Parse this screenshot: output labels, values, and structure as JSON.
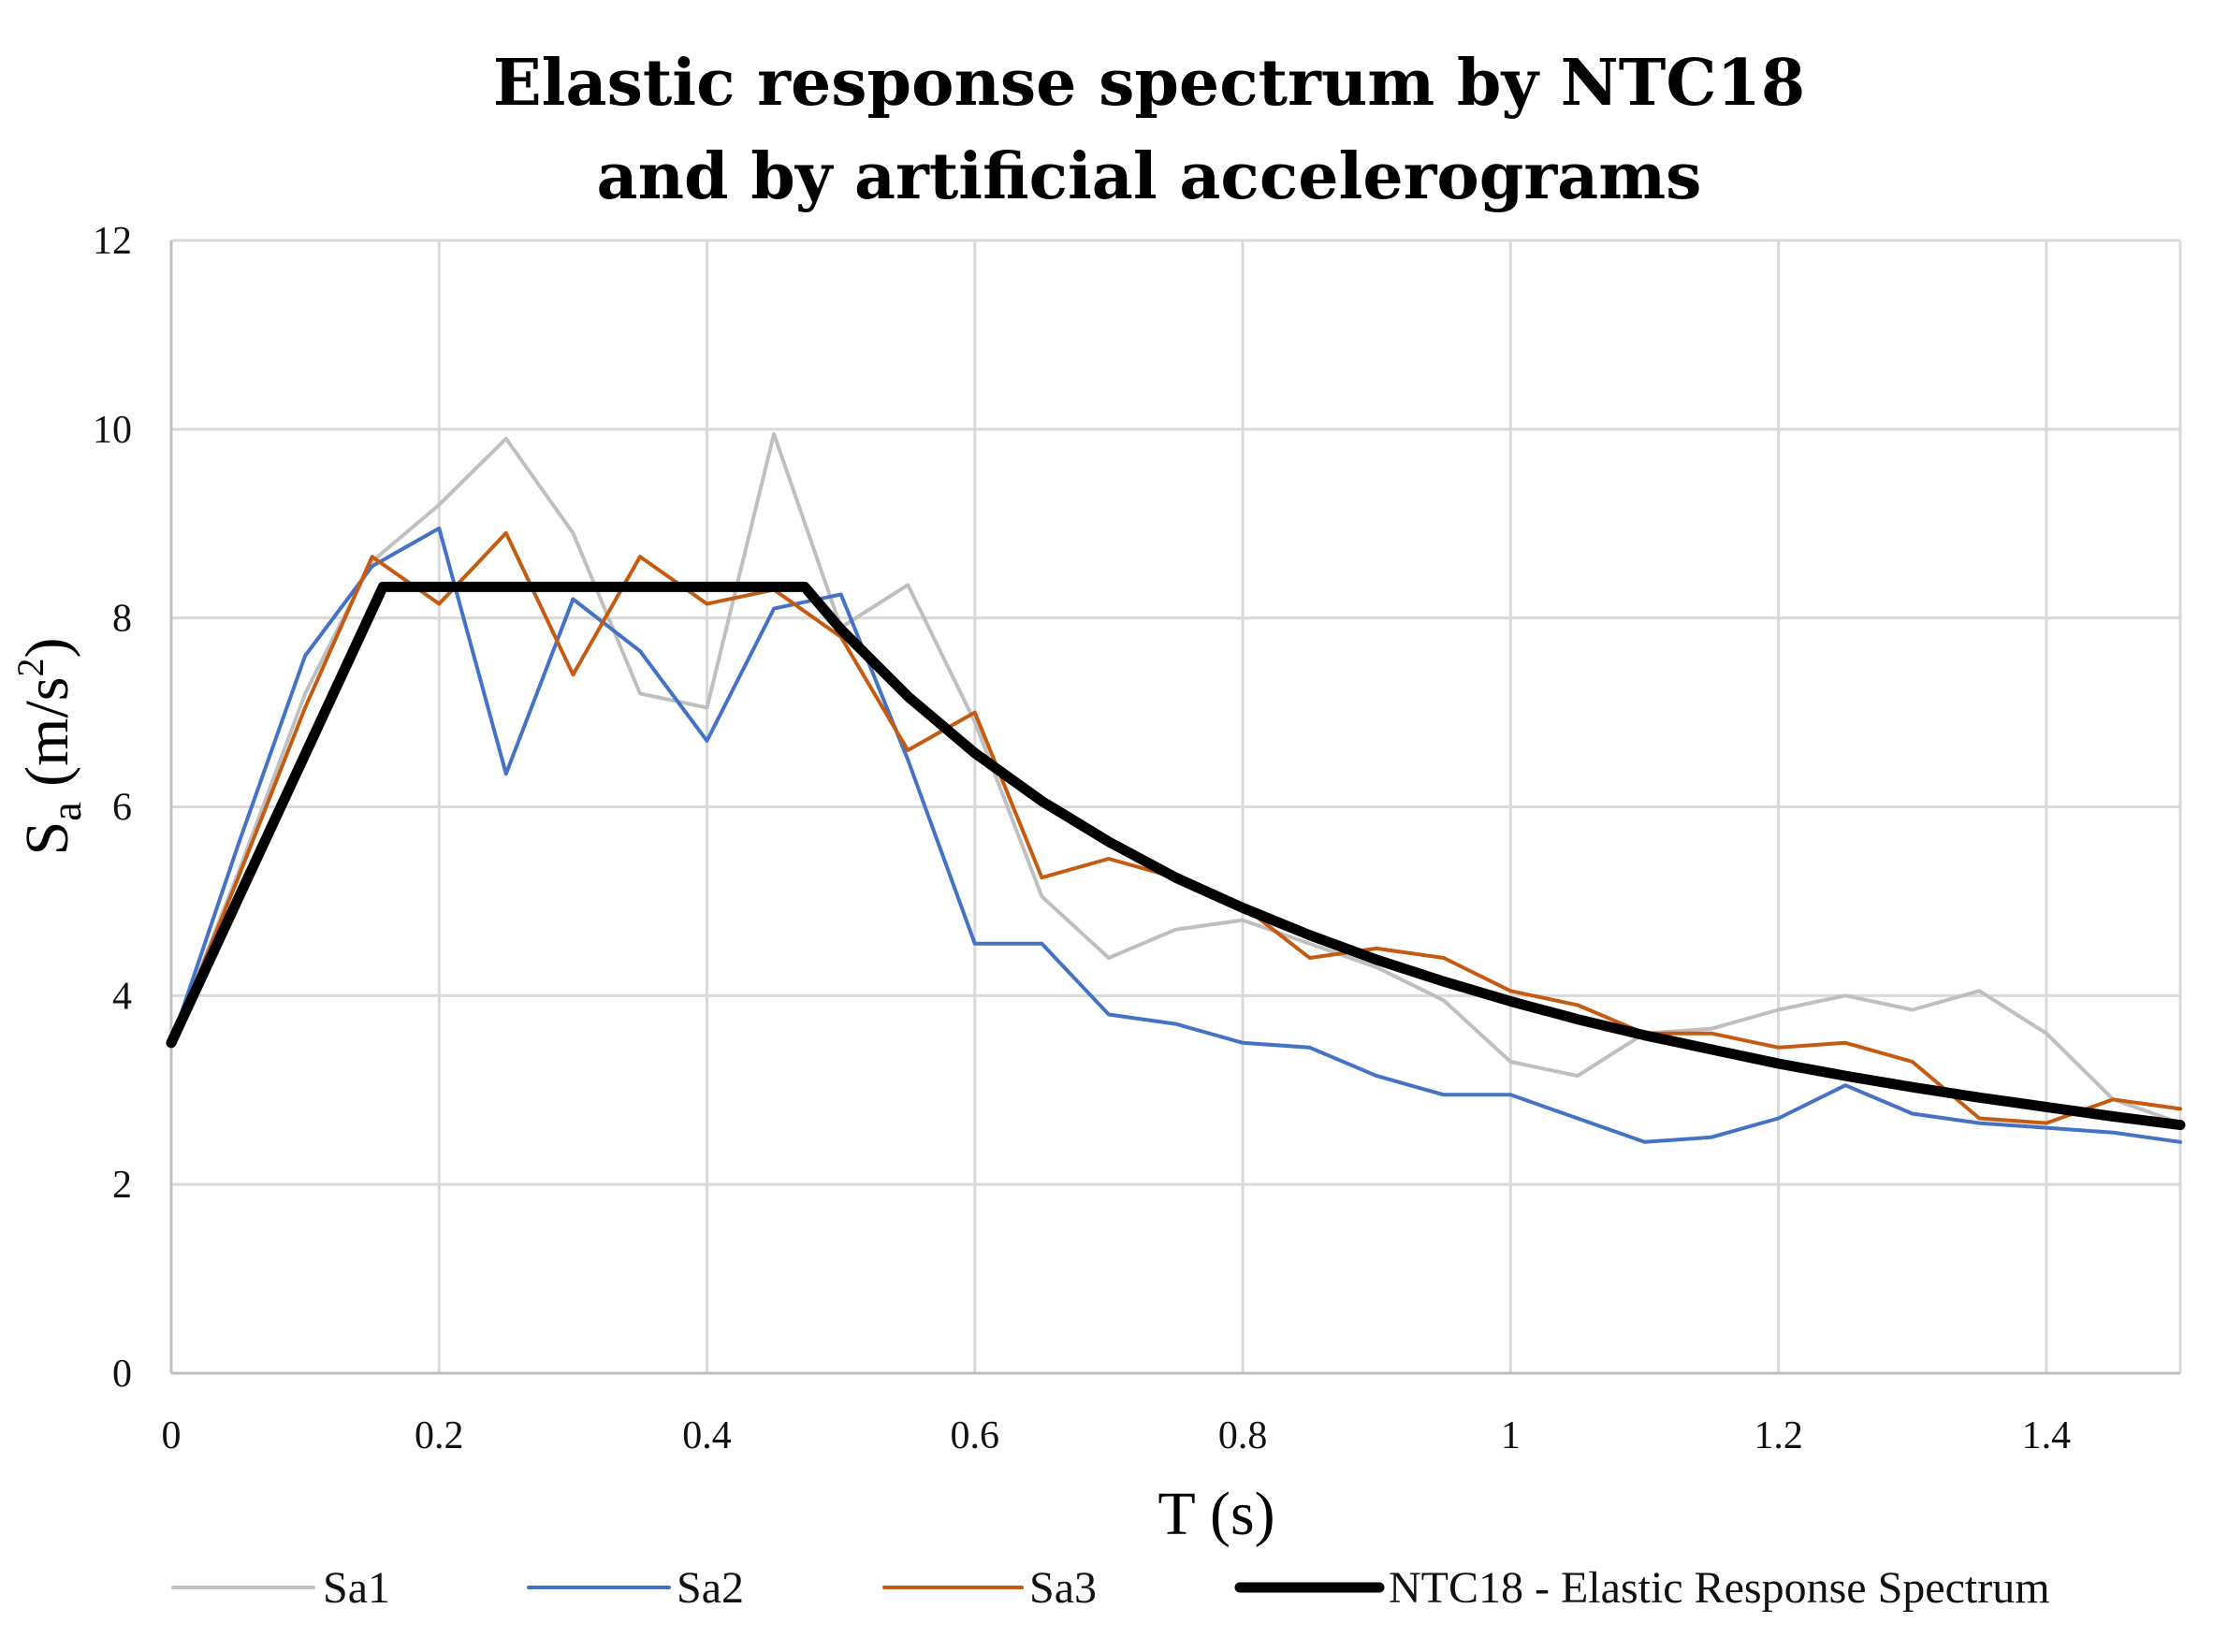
{
  "chart_data": {
    "type": "line",
    "title": [
      "Elastic response spectrum by NTC18",
      "and by artificial accelerograms"
    ],
    "xlabel": "T (s)",
    "ylabel": "Sa (m/s²)",
    "ylabel_parts": {
      "main": "S",
      "sub": "a",
      "units": " (m/s",
      "sup": "2",
      "close": ")"
    },
    "xlim": [
      0,
      1.5
    ],
    "ylim": [
      0,
      12
    ],
    "xticks": [
      0,
      0.2,
      0.4,
      0.6,
      0.8,
      1.0,
      1.2,
      1.4
    ],
    "xtick_labels": [
      "0",
      "0.2",
      "0.4",
      "0.6",
      "0.8",
      "1",
      "1.2",
      "1.4"
    ],
    "yticks": [
      0,
      2,
      4,
      6,
      8,
      10,
      12
    ],
    "ytick_labels": [
      "0",
      "2",
      "4",
      "6",
      "8",
      "10",
      "12"
    ],
    "grid": true,
    "legend_position": "bottom",
    "series": [
      {
        "name": "Sa1",
        "color": "#bfbfbf",
        "width": 4,
        "x": [
          0,
          0.05,
          0.1,
          0.15,
          0.2,
          0.25,
          0.3,
          0.35,
          0.4,
          0.45,
          0.5,
          0.55,
          0.6,
          0.65,
          0.7,
          0.75,
          0.8,
          0.85,
          0.9,
          0.95,
          1.0,
          1.05,
          1.1,
          1.15,
          1.2,
          1.25,
          1.3,
          1.35,
          1.4,
          1.45,
          1.5
        ],
        "values": [
          3.5,
          5.3,
          7.2,
          8.6,
          9.2,
          9.9,
          8.9,
          7.2,
          7.05,
          9.95,
          7.9,
          8.35,
          6.9,
          5.05,
          4.4,
          4.7,
          4.8,
          4.55,
          4.3,
          3.95,
          3.3,
          3.15,
          3.6,
          3.65,
          3.85,
          4.0,
          3.85,
          4.05,
          3.6,
          2.9,
          2.65
        ]
      },
      {
        "name": "Sa2",
        "color": "#4472c4",
        "width": 4,
        "x": [
          0,
          0.05,
          0.1,
          0.15,
          0.2,
          0.25,
          0.3,
          0.35,
          0.4,
          0.45,
          0.5,
          0.55,
          0.6,
          0.65,
          0.7,
          0.75,
          0.8,
          0.85,
          0.9,
          0.95,
          1.0,
          1.05,
          1.1,
          1.15,
          1.2,
          1.25,
          1.3,
          1.35,
          1.4,
          1.45,
          1.5
        ],
        "values": [
          3.5,
          5.6,
          7.6,
          8.55,
          8.95,
          6.35,
          8.2,
          7.65,
          6.7,
          8.1,
          8.25,
          6.5,
          4.55,
          4.55,
          3.8,
          3.7,
          3.5,
          3.45,
          3.15,
          2.95,
          2.95,
          2.7,
          2.45,
          2.5,
          2.7,
          3.05,
          2.75,
          2.65,
          2.6,
          2.55,
          2.45
        ]
      },
      {
        "name": "Sa3",
        "color": "#c55a11",
        "width": 4,
        "x": [
          0,
          0.05,
          0.1,
          0.15,
          0.2,
          0.25,
          0.3,
          0.35,
          0.4,
          0.45,
          0.5,
          0.55,
          0.6,
          0.65,
          0.7,
          0.75,
          0.8,
          0.85,
          0.9,
          0.95,
          1.0,
          1.05,
          1.1,
          1.15,
          1.2,
          1.25,
          1.3,
          1.35,
          1.4,
          1.45,
          1.5
        ],
        "values": [
          3.5,
          5.25,
          7.05,
          8.65,
          8.15,
          8.9,
          7.4,
          8.65,
          8.15,
          8.3,
          7.8,
          6.6,
          7.0,
          5.25,
          5.45,
          5.25,
          4.95,
          4.4,
          4.5,
          4.4,
          4.05,
          3.9,
          3.6,
          3.6,
          3.45,
          3.5,
          3.3,
          2.7,
          2.65,
          2.9,
          2.8
        ]
      },
      {
        "name": "NTC18 - Elastic Response Spectrum",
        "color": "#000000",
        "width": 11,
        "x": [
          0,
          0.158,
          0.2,
          0.25,
          0.3,
          0.35,
          0.4,
          0.45,
          0.473,
          0.5,
          0.55,
          0.6,
          0.65,
          0.7,
          0.75,
          0.8,
          0.85,
          0.9,
          0.95,
          1.0,
          1.05,
          1.1,
          1.15,
          1.2,
          1.25,
          1.3,
          1.35,
          1.4,
          1.45,
          1.5
        ],
        "values": [
          3.5,
          8.33,
          8.33,
          8.33,
          8.33,
          8.33,
          8.33,
          8.33,
          8.33,
          7.88,
          7.17,
          6.57,
          6.06,
          5.63,
          5.25,
          4.93,
          4.64,
          4.38,
          4.15,
          3.94,
          3.75,
          3.58,
          3.43,
          3.28,
          3.15,
          3.03,
          2.92,
          2.82,
          2.72,
          2.63
        ]
      }
    ]
  }
}
